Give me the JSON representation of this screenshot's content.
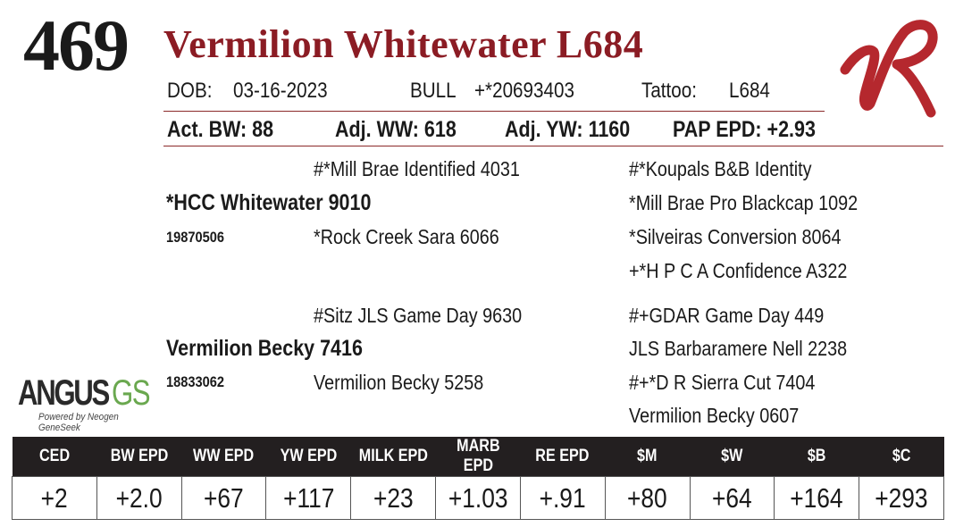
{
  "lot": "469",
  "name": "Vermilion Whitewater L684",
  "header": {
    "dob_label": "DOB:",
    "dob": "03-16-2023",
    "sex": "BULL",
    "registration": "+*20693403",
    "tattoo_label": "Tattoo:",
    "tattoo": "L684"
  },
  "performance": {
    "act_bw": "Act. BW: 88",
    "adj_ww": "Adj. WW: 618",
    "adj_yw": "Adj. YW: 1160",
    "pap_epd": "PAP EPD: +2.93"
  },
  "pedigree": {
    "sire": {
      "name": "*HCC Whitewater 9010",
      "reg": "19870506",
      "sire": "#*Mill Brae Identified 4031",
      "dam": "*Rock Creek Sara 6066",
      "sire_sire": "#*Koupals B&B Identity",
      "sire_dam": "*Mill Brae Pro Blackcap 1092",
      "dam_sire": "*Silveiras Conversion 8064",
      "dam_dam": "+*H P C A Confidence A322"
    },
    "dam": {
      "name": "Vermilion Becky 7416",
      "reg": "18833062",
      "sire": "#Sitz JLS Game Day 9630",
      "dam": "Vermilion Becky 5258",
      "sire_sire": "#+GDAR Game Day 449",
      "sire_dam": "JLS Barbaramere Nell 2238",
      "dam_sire": "#+*D R Sierra Cut 7404",
      "dam_dam": "Vermilion Becky 0607"
    }
  },
  "logo": {
    "angus": "ANGUS",
    "gs": "GS",
    "powered": "Powered by Neogen GeneSeek",
    "gs_color": "#6aa84f"
  },
  "brand": {
    "icon": "vr-brand-logo",
    "color": "#b5282e"
  },
  "epd": {
    "headers": [
      "CED",
      "BW EPD",
      "WW EPD",
      "YW EPD",
      "MILK EPD",
      "MARB EPD",
      "RE EPD",
      "$M",
      "$W",
      "$B",
      "$C"
    ],
    "values": [
      "+2",
      "+2.0",
      "+67",
      "+117",
      "+23",
      "+1.03",
      "+.91",
      "+80",
      "+64",
      "+164",
      "+293"
    ]
  },
  "colors": {
    "name": "#8b1c24",
    "rule": "#8b2a2a",
    "table_header": "#231f20"
  }
}
